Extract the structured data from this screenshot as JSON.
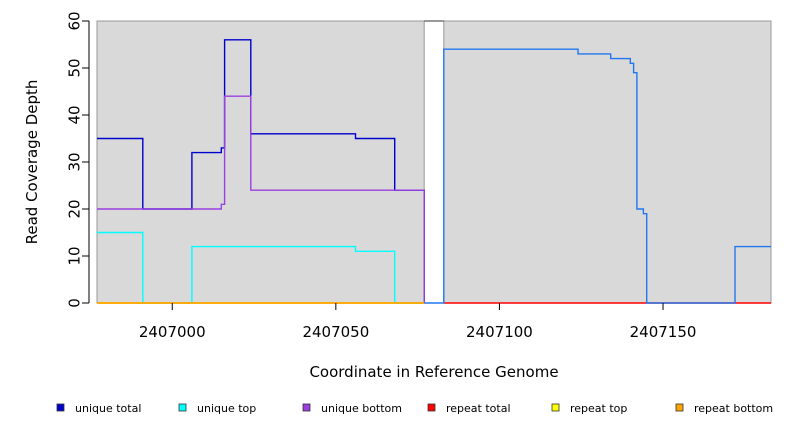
{
  "chart_data": {
    "type": "line",
    "step": true,
    "xlabel": "Coordinate in Reference Genome",
    "ylabel": "Read Coverage Depth",
    "xlim": [
      2406977,
      2407183
    ],
    "ylim": [
      0,
      60
    ],
    "x_ticks": [
      2407000,
      2407050,
      2407100,
      2407150
    ],
    "y_ticks": [
      0,
      10,
      20,
      30,
      40,
      50,
      60
    ],
    "grid": false,
    "panel_background": "#d9d9d9",
    "gaps": [
      [
        2407077,
        2407083
      ]
    ],
    "legend_position": "bottom",
    "series": [
      {
        "name": "unique total",
        "color": "#0000cc",
        "segments": [
          [
            [
              2406977,
              35
            ],
            [
              2406991,
              35
            ],
            [
              2406991,
              20
            ],
            [
              2407006,
              20
            ],
            [
              2407006,
              32
            ],
            [
              2407015,
              32
            ],
            [
              2407015,
              33
            ],
            [
              2407016,
              33
            ],
            [
              2407016,
              56
            ],
            [
              2407024,
              56
            ],
            [
              2407024,
              36
            ],
            [
              2407056,
              36
            ],
            [
              2407056,
              35
            ],
            [
              2407068,
              35
            ],
            [
              2407068,
              24
            ],
            [
              2407077,
              24
            ],
            [
              2407077,
              0
            ]
          ]
        ]
      },
      {
        "name": "unique top",
        "color": "#00ffff",
        "segments": [
          [
            [
              2406977,
              15
            ],
            [
              2406991,
              15
            ],
            [
              2406991,
              0
            ],
            [
              2407006,
              0
            ],
            [
              2407006,
              12
            ],
            [
              2407056,
              12
            ],
            [
              2407056,
              11
            ],
            [
              2407068,
              11
            ],
            [
              2407068,
              0
            ],
            [
              2407077,
              0
            ]
          ]
        ]
      },
      {
        "name": "unique bottom",
        "color": "#9a40e0",
        "segments": [
          [
            [
              2406977,
              20
            ],
            [
              2407015,
              20
            ],
            [
              2407015,
              21
            ],
            [
              2407016,
              21
            ],
            [
              2407016,
              44
            ],
            [
              2407024,
              44
            ],
            [
              2407024,
              24
            ],
            [
              2407077,
              24
            ],
            [
              2407077,
              0
            ]
          ]
        ]
      },
      {
        "name": "repeat total",
        "color": "#ff0000",
        "segments": [
          [
            [
              2406977,
              0
            ],
            [
              2407077,
              0
            ]
          ],
          [
            [
              2407083,
              0
            ],
            [
              2407183,
              0
            ]
          ]
        ]
      },
      {
        "name": "repeat top",
        "color": "#ffff00",
        "segments": [
          [
            [
              2406977,
              0
            ],
            [
              2407077,
              0
            ]
          ]
        ]
      },
      {
        "name": "repeat bottom",
        "color": "#ffa500",
        "segments": [
          [
            [
              2406977,
              0
            ],
            [
              2407077,
              0
            ]
          ]
        ]
      },
      {
        "name": "",
        "color": "#2277ee",
        "segments": [
          [
            [
              2407077,
              0
            ],
            [
              2407083,
              0
            ],
            [
              2407083,
              54
            ],
            [
              2407124,
              54
            ],
            [
              2407124,
              53
            ],
            [
              2407134,
              53
            ],
            [
              2407134,
              52
            ],
            [
              2407140,
              52
            ],
            [
              2407140,
              51
            ],
            [
              2407141,
              51
            ],
            [
              2407141,
              49
            ],
            [
              2407142,
              49
            ],
            [
              2407142,
              20
            ],
            [
              2407144,
              20
            ],
            [
              2407144,
              19
            ],
            [
              2407145,
              19
            ],
            [
              2407145,
              0
            ],
            [
              2407172,
              0
            ],
            [
              2407172,
              12
            ],
            [
              2407183,
              12
            ]
          ]
        ]
      }
    ]
  }
}
